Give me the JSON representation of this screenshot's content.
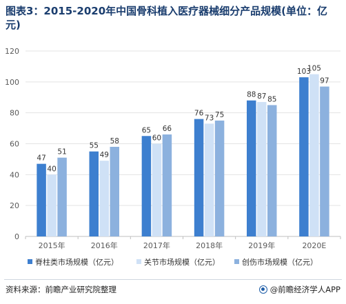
{
  "title": "图表3：2015-2020年中国骨科植入医疗器械细分产品规模(单位：亿元)",
  "source": "资料来源：前瞻产业研究院整理",
  "brand": "@前瞻经济学人APP",
  "colors": {
    "series": [
      "#3d7fcf",
      "#cfe1f6",
      "#8cb1de"
    ],
    "axis": "#bfbfbf",
    "grid": "#e3e3e3",
    "tick": "#595959",
    "label": "#333333"
  },
  "chart_data": {
    "type": "bar",
    "categories": [
      "2015年",
      "2016年",
      "2017年",
      "2018年",
      "2019年",
      "2020E"
    ],
    "series": [
      {
        "name": "脊柱类市场规模（亿元）",
        "values": [
          47,
          55,
          65,
          76,
          88,
          103
        ]
      },
      {
        "name": "关节市场规模（亿元）",
        "values": [
          40,
          49,
          60,
          73,
          87,
          105
        ]
      },
      {
        "name": "创伤市场规模（亿元）",
        "values": [
          51,
          58,
          66,
          75,
          85,
          97
        ]
      }
    ],
    "yticks": [
      0,
      20,
      40,
      60,
      80,
      100,
      120
    ],
    "ylim": [
      0,
      120
    ],
    "grid": true,
    "legend_position": "bottom"
  }
}
